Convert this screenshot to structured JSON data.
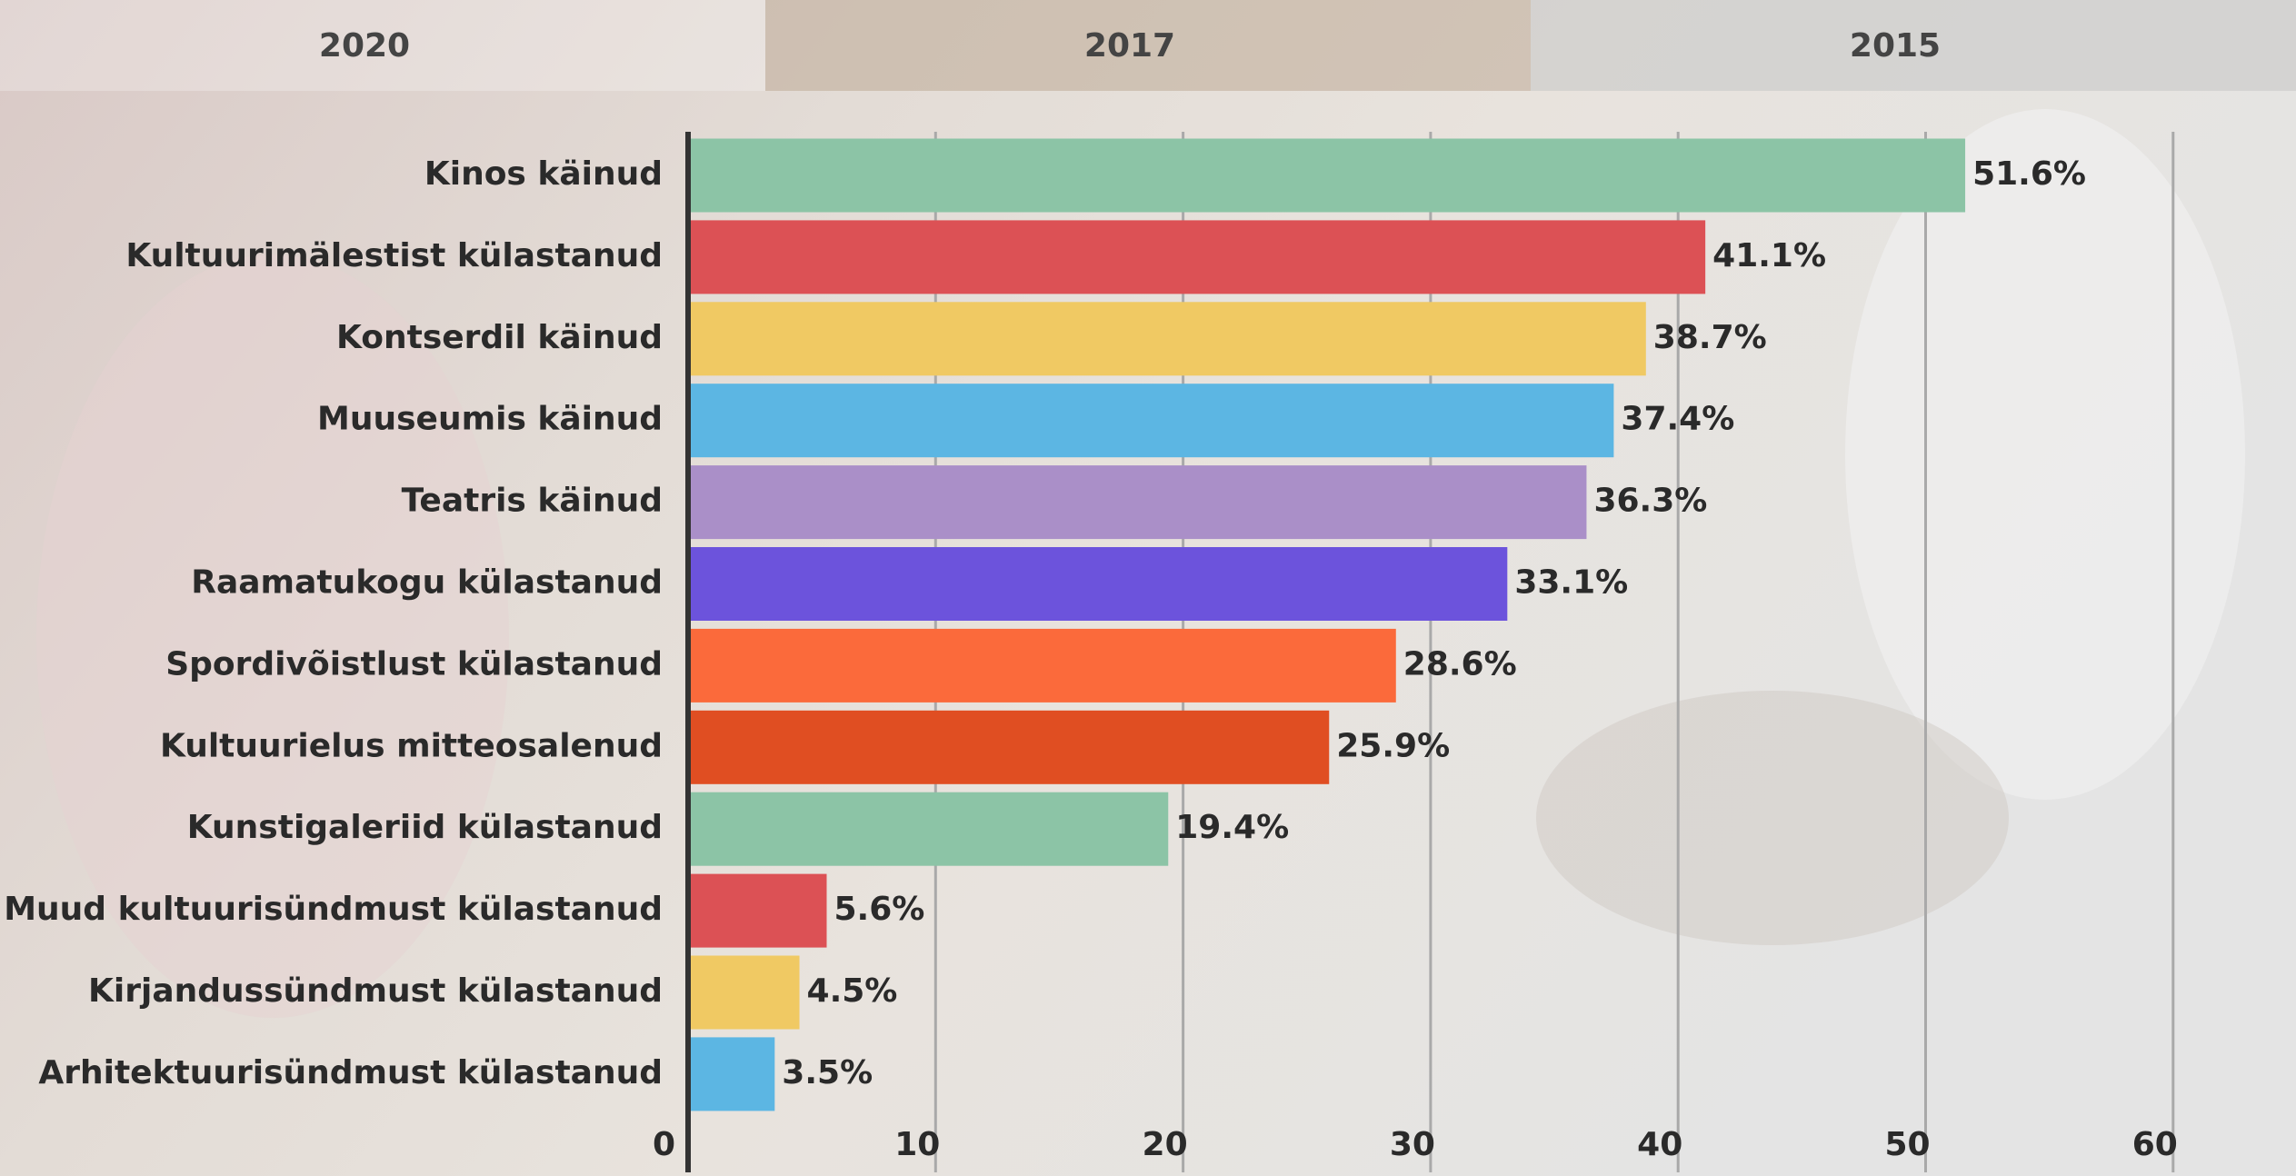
{
  "tabs": [
    "2020",
    "2017",
    "2015"
  ],
  "chart_data": {
    "type": "hbar",
    "categories": [
      "Kinos käinud",
      "Kultuurimälestist külastanud",
      "Kontserdil käinud",
      "Muuseumis käinud",
      "Teatris käinud",
      "Raamatukogu külastanud",
      "Spordivõistlust külastanud",
      "Kultuurielus mitteosalenud",
      "Kunstigaleriid külastanud",
      "Muud kultuurisündmust külastanud",
      "Kirjandussündmust külastanud",
      "Arhitektuurisündmust külastanud"
    ],
    "values": [
      51.6,
      41.1,
      38.7,
      37.4,
      36.3,
      33.1,
      28.6,
      25.9,
      19.4,
      5.6,
      4.5,
      3.5
    ],
    "value_labels": [
      "51.6%",
      "41.1%",
      "38.7%",
      "37.4%",
      "36.3%",
      "33.1%",
      "28.6%",
      "25.9%",
      "19.4%",
      "5.6%",
      "4.5%",
      "3.5%"
    ],
    "colors": [
      "#8cc4a6",
      "#dc5155",
      "#f0c963",
      "#5cb6e3",
      "#aa8fc8",
      "#6c53dc",
      "#fb6a3b",
      "#e04e22",
      "#8cc4a6",
      "#dc5155",
      "#f0c963",
      "#5cb6e3"
    ],
    "xlim": [
      0,
      65
    ],
    "xticks": [
      0,
      10,
      20,
      30,
      40,
      50,
      60
    ],
    "grid": true
  }
}
